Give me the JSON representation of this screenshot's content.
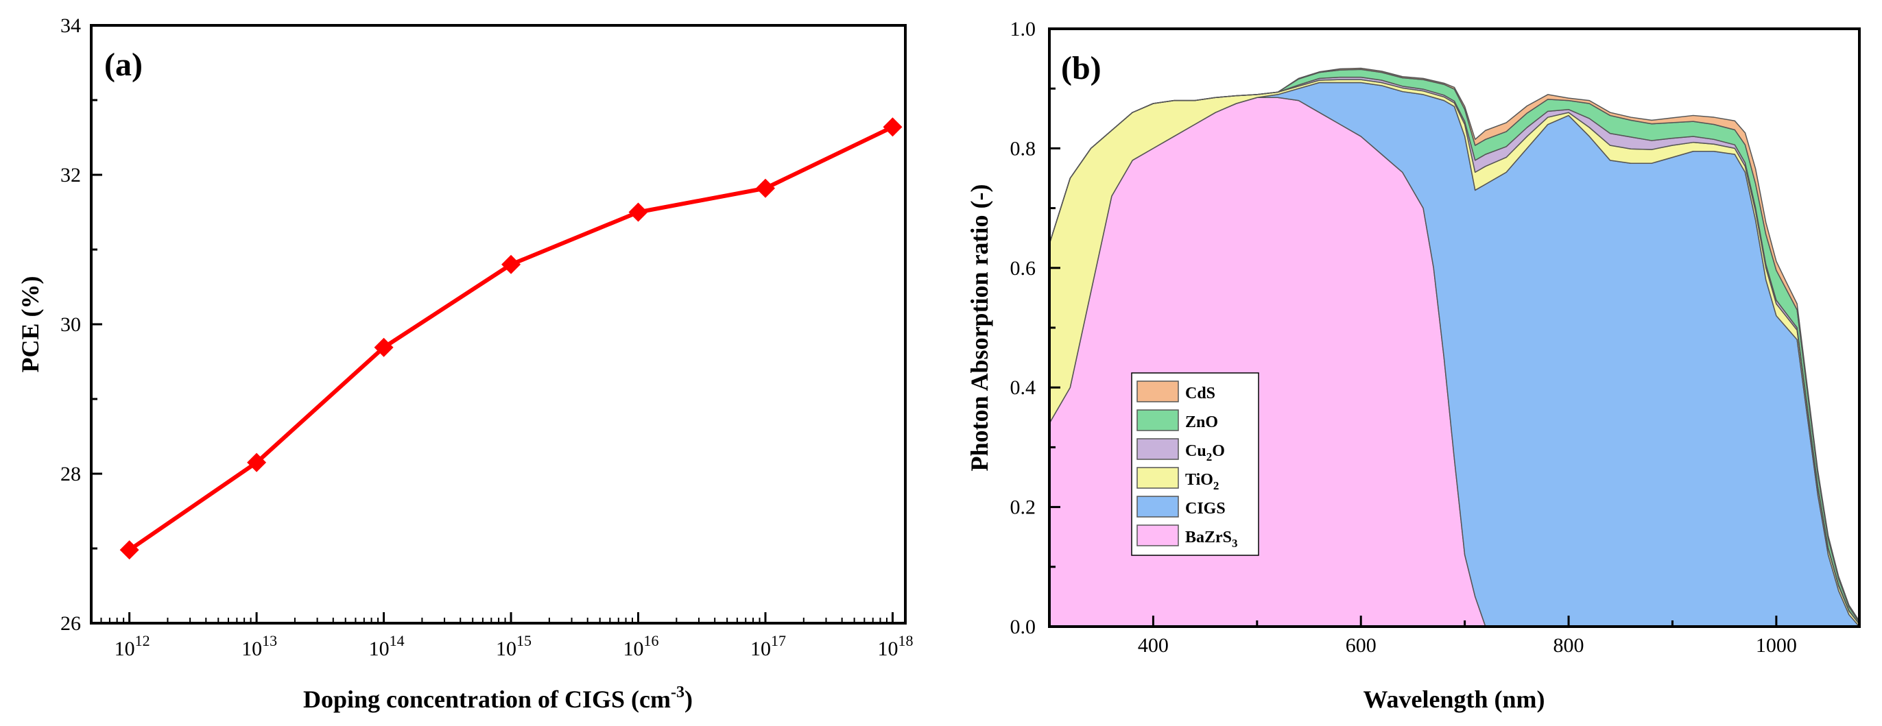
{
  "chart_data": [
    {
      "type": "line",
      "panel_label": "(a)",
      "x_exponents": [
        12,
        13,
        14,
        15,
        16,
        17,
        18
      ],
      "x_tick_base": "10",
      "x_tick_labels": [
        {
          "base": "10",
          "exp": "12"
        },
        {
          "base": "10",
          "exp": "13"
        },
        {
          "base": "10",
          "exp": "14"
        },
        {
          "base": "10",
          "exp": "15"
        },
        {
          "base": "10",
          "exp": "16"
        },
        {
          "base": "10",
          "exp": "17"
        },
        {
          "base": "10",
          "exp": "18"
        }
      ],
      "y_ticks": [
        "26",
        "28",
        "30",
        "32",
        "34"
      ],
      "series": [
        {
          "name": "PCE",
          "values": [
            26.98,
            28.15,
            29.69,
            30.8,
            31.5,
            31.82,
            32.64
          ],
          "color": "#ff0000",
          "marker": "diamond"
        }
      ],
      "xlabel_main": "Doping concentration of  CIGS (cm",
      "xlabel_sup": "-3",
      "xlabel_tail": ")",
      "ylabel": "PCE (%)",
      "xscale": "log",
      "xlim_exp": [
        11.7,
        18.1
      ],
      "ylim": [
        26,
        34
      ]
    },
    {
      "type": "area",
      "stacked": true,
      "panel_label": "(b)",
      "x": [
        300,
        320,
        340,
        360,
        380,
        400,
        420,
        440,
        460,
        480,
        500,
        520,
        540,
        560,
        580,
        600,
        620,
        640,
        660,
        670,
        680,
        690,
        700,
        710,
        720,
        740,
        760,
        780,
        800,
        820,
        840,
        860,
        880,
        900,
        920,
        940,
        960,
        970,
        980,
        990,
        1000,
        1010,
        1020,
        1030,
        1040,
        1050,
        1060,
        1070,
        1080
      ],
      "x_ticks": [
        "400",
        "600",
        "800",
        "1000"
      ],
      "y_ticks": [
        "0.0",
        "0.2",
        "0.4",
        "0.6",
        "0.8",
        "1.0"
      ],
      "series": [
        {
          "name": "BaZrS",
          "sub": "3",
          "color": "#ffbcf6",
          "values": [
            0.34,
            0.4,
            0.56,
            0.72,
            0.78,
            0.8,
            0.82,
            0.84,
            0.86,
            0.875,
            0.885,
            0.885,
            0.88,
            0.86,
            0.84,
            0.82,
            0.79,
            0.76,
            0.7,
            0.6,
            0.45,
            0.28,
            0.12,
            0.05,
            0.0,
            0,
            0,
            0,
            0,
            0,
            0,
            0,
            0,
            0,
            0,
            0,
            0,
            0,
            0,
            0,
            0,
            0,
            0,
            0,
            0,
            0,
            0,
            0,
            0
          ]
        },
        {
          "name": "CIGS",
          "sub": "",
          "color": "#8bbcf5",
          "values": [
            0,
            0,
            0,
            0,
            0,
            0,
            0,
            0,
            0,
            0,
            0,
            0.005,
            0.02,
            0.05,
            0.07,
            0.09,
            0.115,
            0.135,
            0.19,
            0.285,
            0.43,
            0.59,
            0.7,
            0.68,
            0.74,
            0.76,
            0.8,
            0.84,
            0.855,
            0.82,
            0.78,
            0.775,
            0.775,
            0.785,
            0.795,
            0.795,
            0.79,
            0.76,
            0.68,
            0.58,
            0.52,
            0.5,
            0.48,
            0.35,
            0.22,
            0.12,
            0.06,
            0.02,
            0.0
          ]
        },
        {
          "name": "TiO",
          "sub": "2",
          "color": "#f5f5a0",
          "values": [
            0.3,
            0.35,
            0.24,
            0.11,
            0.08,
            0.075,
            0.06,
            0.04,
            0.025,
            0.013,
            0.005,
            0.004,
            0.004,
            0.004,
            0.005,
            0.005,
            0.005,
            0.006,
            0.006,
            0.006,
            0.006,
            0.006,
            0.02,
            0.03,
            0.03,
            0.025,
            0.02,
            0.012,
            0.005,
            0.015,
            0.025,
            0.024,
            0.023,
            0.02,
            0.015,
            0.012,
            0.01,
            0.01,
            0.015,
            0.02,
            0.02,
            0.018,
            0.016,
            0.014,
            0.012,
            0.01,
            0.008,
            0.006,
            0.004
          ]
        },
        {
          "name": "Cu",
          "sub": "2",
          "post": "O",
          "color": "#c8b2db",
          "values": [
            0,
            0,
            0,
            0,
            0,
            0,
            0,
            0,
            0,
            0,
            0,
            0,
            0.002,
            0.003,
            0.004,
            0.004,
            0.004,
            0.003,
            0.003,
            0.003,
            0.003,
            0.003,
            0.005,
            0.02,
            0.02,
            0.018,
            0.015,
            0.01,
            0.005,
            0.015,
            0.02,
            0.02,
            0.015,
            0.012,
            0.01,
            0.008,
            0.006,
            0.006,
            0.006,
            0.006,
            0.006,
            0.005,
            0.004,
            0.003,
            0.003,
            0.002,
            0.002,
            0.001,
            0.0
          ]
        },
        {
          "name": "ZnO",
          "sub": "",
          "color": "#7ed99d",
          "values": [
            0,
            0,
            0,
            0,
            0,
            0,
            0,
            0,
            0,
            0,
            0,
            0,
            0.01,
            0.01,
            0.012,
            0.013,
            0.013,
            0.014,
            0.016,
            0.017,
            0.018,
            0.02,
            0.02,
            0.025,
            0.025,
            0.025,
            0.024,
            0.02,
            0.015,
            0.025,
            0.03,
            0.028,
            0.028,
            0.026,
            0.025,
            0.025,
            0.025,
            0.03,
            0.04,
            0.05,
            0.05,
            0.04,
            0.03,
            0.025,
            0.02,
            0.015,
            0.01,
            0.006,
            0.003
          ]
        },
        {
          "name": "CdS",
          "sub": "",
          "color": "#f5b98c",
          "values": [
            0,
            0,
            0,
            0,
            0,
            0,
            0,
            0,
            0,
            0,
            0,
            0,
            0.001,
            0.001,
            0.002,
            0.002,
            0.002,
            0.002,
            0.002,
            0.002,
            0.002,
            0.003,
            0.005,
            0.01,
            0.015,
            0.015,
            0.012,
            0.008,
            0.004,
            0.005,
            0.005,
            0.005,
            0.006,
            0.008,
            0.01,
            0.012,
            0.015,
            0.02,
            0.025,
            0.02,
            0.015,
            0.012,
            0.01,
            0.008,
            0.006,
            0.005,
            0.004,
            0.003,
            0.002
          ]
        }
      ],
      "legend_order": [
        "CdS",
        "ZnO",
        "Cu2O",
        "TiO2",
        "CIGS",
        "BaZrS3"
      ],
      "xlabel": "Wavelength (nm)",
      "ylabel": "Photon Absorption ratio (-)",
      "xlim": [
        300,
        1080
      ],
      "ylim": [
        0,
        1
      ],
      "legend_position": "lower-left"
    }
  ]
}
